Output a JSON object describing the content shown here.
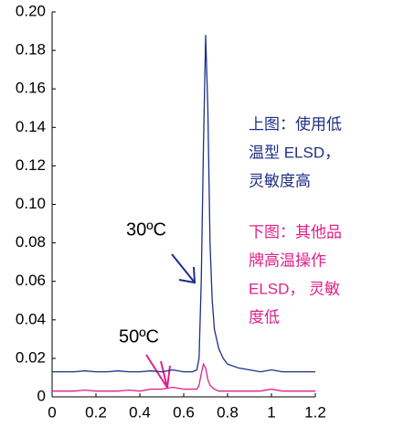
{
  "chart_data": {
    "type": "line",
    "x": [
      0,
      0.05,
      0.1,
      0.15,
      0.2,
      0.25,
      0.3,
      0.35,
      0.4,
      0.45,
      0.5,
      0.55,
      0.6,
      0.62,
      0.64,
      0.66,
      0.67,
      0.68,
      0.69,
      0.7,
      0.71,
      0.72,
      0.73,
      0.74,
      0.76,
      0.78,
      0.8,
      0.85,
      0.9,
      0.95,
      1.0,
      1.05,
      1.1,
      1.15,
      1.2
    ],
    "series": [
      {
        "color": "#1f2f86",
        "values": [
          0.013,
          0.013,
          0.013,
          0.0135,
          0.013,
          0.013,
          0.0135,
          0.013,
          0.013,
          0.0135,
          0.013,
          0.014,
          0.013,
          0.013,
          0.013,
          0.014,
          0.02,
          0.06,
          0.13,
          0.188,
          0.15,
          0.08,
          0.05,
          0.035,
          0.025,
          0.02,
          0.017,
          0.015,
          0.014,
          0.013,
          0.014,
          0.013,
          0.013,
          0.013,
          0.013
        ]
      },
      {
        "color": "#e0218a",
        "values": [
          0.003,
          0.003,
          0.003,
          0.0035,
          0.003,
          0.003,
          0.003,
          0.0035,
          0.003,
          0.004,
          0.004,
          0.005,
          0.004,
          0.004,
          0.004,
          0.004,
          0.006,
          0.012,
          0.017,
          0.015,
          0.009,
          0.006,
          0.005,
          0.004,
          0.003,
          0.003,
          0.003,
          0.003,
          0.003,
          0.003,
          0.004,
          0.003,
          0.003,
          0.003,
          0.003
        ]
      }
    ],
    "xlim": [
      0,
      1.2
    ],
    "xticks": [
      0,
      0.2,
      0.4,
      0.6,
      0.8,
      1,
      1.2
    ],
    "ylim": [
      0,
      0.2
    ],
    "yticks": [
      0,
      0.02,
      0.04,
      0.06,
      0.08,
      {
        "value": 0.1,
        "label": "0.10"
      },
      0.12,
      0.14,
      0.16,
      0.18,
      {
        "value": 0.2,
        "label": "0.20"
      }
    ],
    "annotations": [
      "30ºC",
      "50ºC"
    ],
    "notes": [
      {
        "color": "#1f2f86",
        "lines": [
          "上图：使用低",
          "温型 ELSD，",
          "灵敏度高"
        ]
      },
      {
        "color": "#e0218a",
        "lines": [
          "下图：其他品",
          "牌高温操作",
          "ELSD， 灵敏",
          "度低"
        ]
      }
    ]
  }
}
